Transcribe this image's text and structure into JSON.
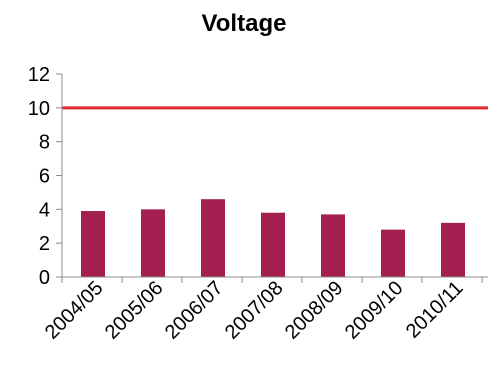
{
  "chart_data": {
    "type": "bar",
    "title": "Voltage",
    "xlabel": "",
    "ylabel": "",
    "categories": [
      "2004/05",
      "2005/06",
      "2006/07",
      "2007/08",
      "2008/09",
      "2009/10",
      "2010/11"
    ],
    "series": [
      {
        "values": [
          3.9,
          4.0,
          4.6,
          3.8,
          3.7,
          2.8,
          3.2
        ],
        "color": "#a31f4f"
      }
    ],
    "reference_lines": [
      {
        "y": 10,
        "color": "#e02a2a"
      }
    ],
    "ylim": [
      0,
      12
    ],
    "yticks": [
      0,
      2,
      4,
      6,
      8,
      10,
      12
    ],
    "grid": false,
    "legend": "none",
    "axis_color": "#8c8c8c"
  }
}
